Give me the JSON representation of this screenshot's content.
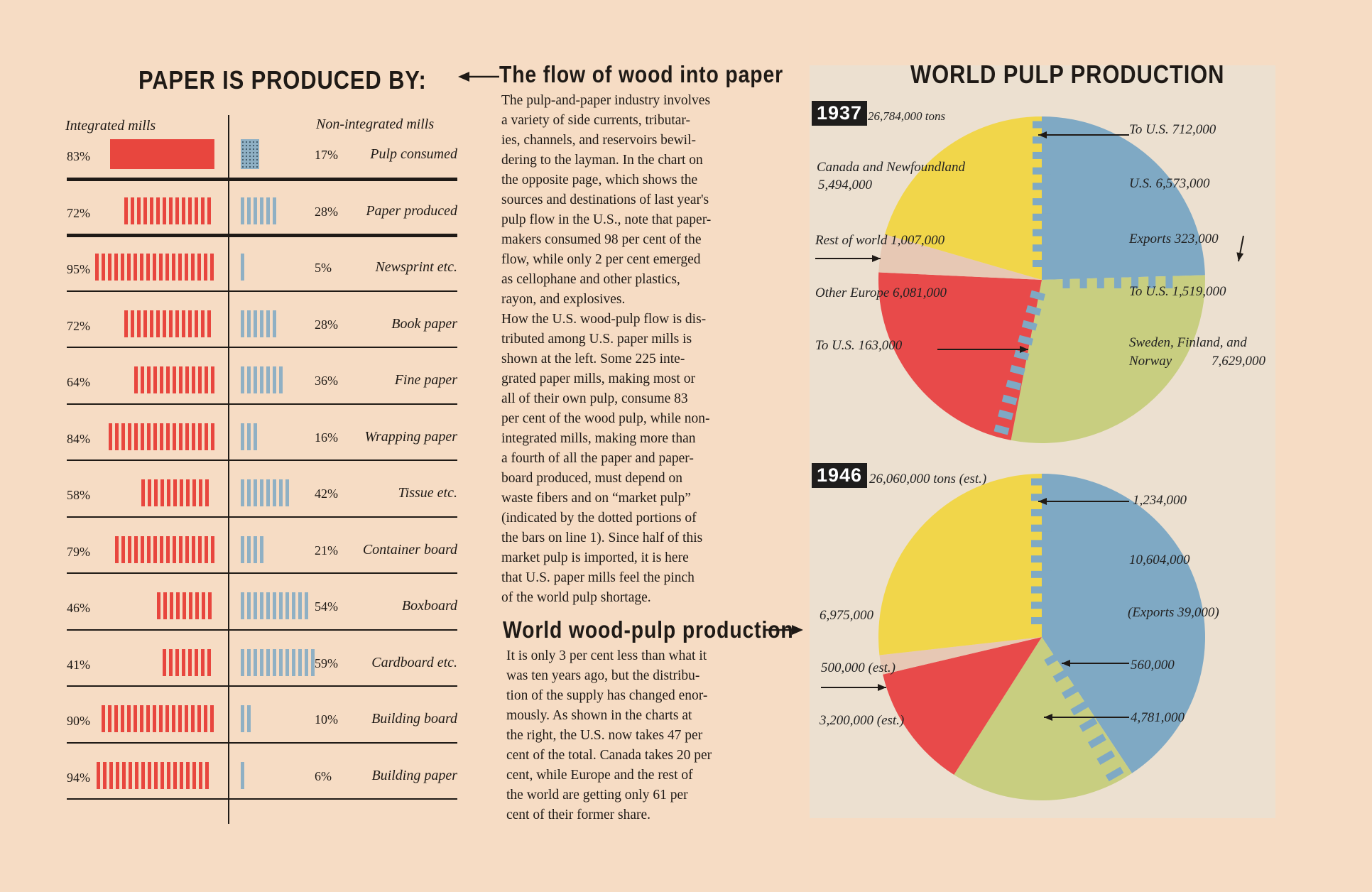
{
  "left": {
    "title": "PAPER IS PRODUCED BY:",
    "col_left": "Integrated mills",
    "col_right": "Non-integrated mills",
    "rows": [
      {
        "label": "Pulp consumed",
        "integrated": "83%",
        "non": "17%"
      },
      {
        "label": "Paper produced",
        "integrated": "72%",
        "non": "28%"
      },
      {
        "label": "Newsprint etc.",
        "integrated": "95%",
        "non": "5%"
      },
      {
        "label": "Book paper",
        "integrated": "72%",
        "non": "28%"
      },
      {
        "label": "Fine paper",
        "integrated": "64%",
        "non": "36%"
      },
      {
        "label": "Wrapping paper",
        "integrated": "84%",
        "non": "16%"
      },
      {
        "label": "Tissue etc.",
        "integrated": "58%",
        "non": "42%"
      },
      {
        "label": "Container board",
        "integrated": "79%",
        "non": "21%"
      },
      {
        "label": "Boxboard",
        "integrated": "46%",
        "non": "54%"
      },
      {
        "label": "Cardboard etc.",
        "integrated": "41%",
        "non": "59%"
      },
      {
        "label": "Building board",
        "integrated": "90%",
        "non": "10%"
      },
      {
        "label": "Building paper",
        "integrated": "94%",
        "non": "6%"
      }
    ]
  },
  "middle": {
    "heading1": "The flow of wood into paper",
    "para1": [
      "The pulp-and-paper industry involves",
      "a variety of side currents, tributar-",
      "ies, channels, and reservoirs bewil-",
      "dering to the layman. In the chart on",
      "the opposite page, which shows the",
      "sources and destinations of last year's",
      "pulp flow in the U.S., note that paper-",
      "makers consumed 98 per cent of the",
      "flow, while only 2 per cent emerged",
      "as cellophane and other plastics,",
      "rayon, and explosives.",
      "How the U.S. wood-pulp flow is dis-",
      "tributed among U.S. paper mills is",
      "shown at the left. Some 225 inte-",
      "grated paper mills, making most or",
      "all of their own pulp, consume 83",
      "per cent of the wood pulp, while non-",
      "integrated mills, making more than",
      "a fourth of all the paper and paper-",
      "board produced, must depend on",
      "waste fibers and on “market pulp”",
      "(indicated by the dotted portions of",
      "the bars on line 1). Since half of this",
      "market pulp is imported, it is here",
      "that U.S. paper mills feel the pinch",
      "of the world pulp shortage."
    ],
    "heading2": "World wood-pulp production",
    "para2": [
      "It is only 3 per cent less than what it",
      "was ten years ago, but the distribu-",
      "tion of the supply has changed enor-",
      "mously. As shown in the charts at",
      "the right, the U.S. now takes 47 per",
      "cent of the total. Canada takes 20 per",
      "cent, while Europe and the rest of",
      "the world are getting only 61 per",
      "cent of their former share."
    ]
  },
  "right": {
    "title": "WORLD PULP PRODUCTION",
    "pie1937": {
      "year": "1937",
      "total": "26,784,000 tons",
      "labels": {
        "to_us_top": "To U.S. 712,000",
        "canada": "Canada and Newfoundland",
        "canada_val": "5,494,000",
        "us": "U.S. 6,573,000",
        "rest": "Rest of world  1,007,000",
        "exports": "Exports 323,000",
        "other_europe": "Other Europe  6,081,000",
        "to_us_sweden": "To U.S. 1,519,000",
        "to_us_europe": "To U.S. 163,000",
        "sweden": "Sweden, Finland, and",
        "norway": "Norway",
        "sweden_val": "7,629,000"
      }
    },
    "pie1946": {
      "year": "1946",
      "total": "26,060,000 tons (est.)",
      "labels": {
        "top": "1,234,000",
        "us": "10,604,000",
        "exports": "(Exports 39,000)",
        "canada": "6,975,000",
        "rest": "500,000 (est.)",
        "s560": "560,000",
        "europe": "3,200,000 (est.)",
        "s4781": "4,781,000"
      }
    }
  },
  "chart_data": [
    {
      "type": "bar",
      "title": "PAPER IS PRODUCED BY:",
      "categories": [
        "Pulp consumed",
        "Paper produced",
        "Newsprint etc.",
        "Book paper",
        "Fine paper",
        "Wrapping paper",
        "Tissue etc.",
        "Container board",
        "Boxboard",
        "Cardboard etc.",
        "Building board",
        "Building paper"
      ],
      "series": [
        {
          "name": "Integrated mills",
          "values": [
            83,
            72,
            95,
            72,
            64,
            84,
            58,
            79,
            46,
            41,
            90,
            94
          ]
        },
        {
          "name": "Non-integrated mills",
          "values": [
            17,
            28,
            5,
            28,
            36,
            16,
            42,
            21,
            54,
            59,
            10,
            6
          ]
        }
      ],
      "colors": {
        "integrated": "#e8463e",
        "non": "#8fb0c4"
      }
    },
    {
      "type": "pie",
      "title": "1937",
      "categories": [
        "U.S.",
        "Sweden, Finland, and Norway",
        "Other Europe",
        "Rest of world",
        "Canada and Newfoundland"
      ],
      "values": [
        6573000,
        7629000,
        6081000,
        1007000,
        5494000
      ],
      "colors": [
        "#7fa9c4",
        "#c8ce80",
        "#e84a4a",
        "#e7c8b4",
        "#f1d64a"
      ]
    },
    {
      "type": "pie",
      "title": "1946",
      "categories": [
        "U.S.",
        "Sweden, Finland, and Norway",
        "Other Europe",
        "Rest of world",
        "Canada"
      ],
      "values": [
        10604000,
        4781000,
        3200000,
        500000,
        6975000
      ],
      "colors": [
        "#7fa9c4",
        "#c8ce80",
        "#e84a4a",
        "#e7c8b4",
        "#f1d64a"
      ]
    }
  ]
}
